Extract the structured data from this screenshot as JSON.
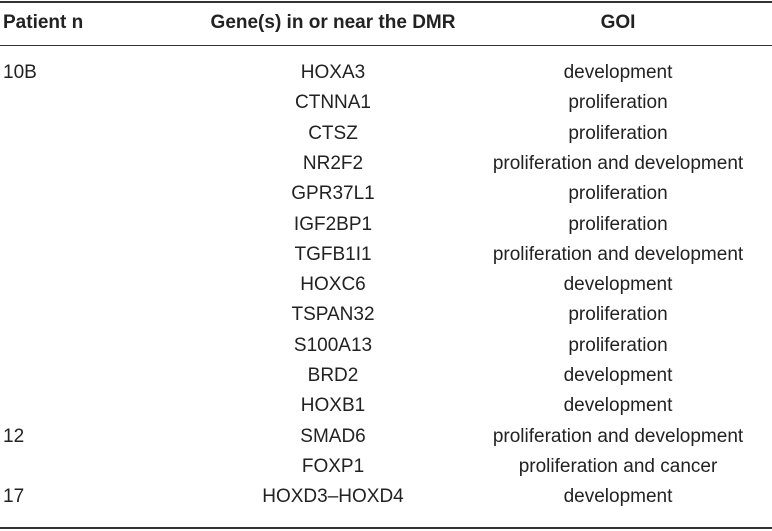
{
  "table": {
    "headers": [
      "Patient n",
      "Gene(s) in or near the DMR",
      "GOI"
    ],
    "groups": [
      {
        "patient": "10B",
        "rows": [
          [
            "HOXA3",
            "development"
          ],
          [
            "CTNNA1",
            "proliferation"
          ],
          [
            "CTSZ",
            "proliferation"
          ],
          [
            "NR2F2",
            "proliferation and development"
          ],
          [
            "GPR37L1",
            "proliferation"
          ],
          [
            "IGF2BP1",
            "proliferation"
          ],
          [
            "TGFB1I1",
            "proliferation and development"
          ],
          [
            "HOXC6",
            "development"
          ],
          [
            "TSPAN32",
            "proliferation"
          ],
          [
            "S100A13",
            "proliferation"
          ],
          [
            "BRD2",
            "development"
          ],
          [
            "HOXB1",
            "development"
          ]
        ]
      },
      {
        "patient": "12",
        "rows": [
          [
            "SMAD6",
            "proliferation and development"
          ],
          [
            "FOXP1",
            "proliferation and cancer"
          ]
        ]
      },
      {
        "patient": "17",
        "rows": [
          [
            "HOXD3–HOXD4",
            "development"
          ]
        ]
      }
    ]
  }
}
